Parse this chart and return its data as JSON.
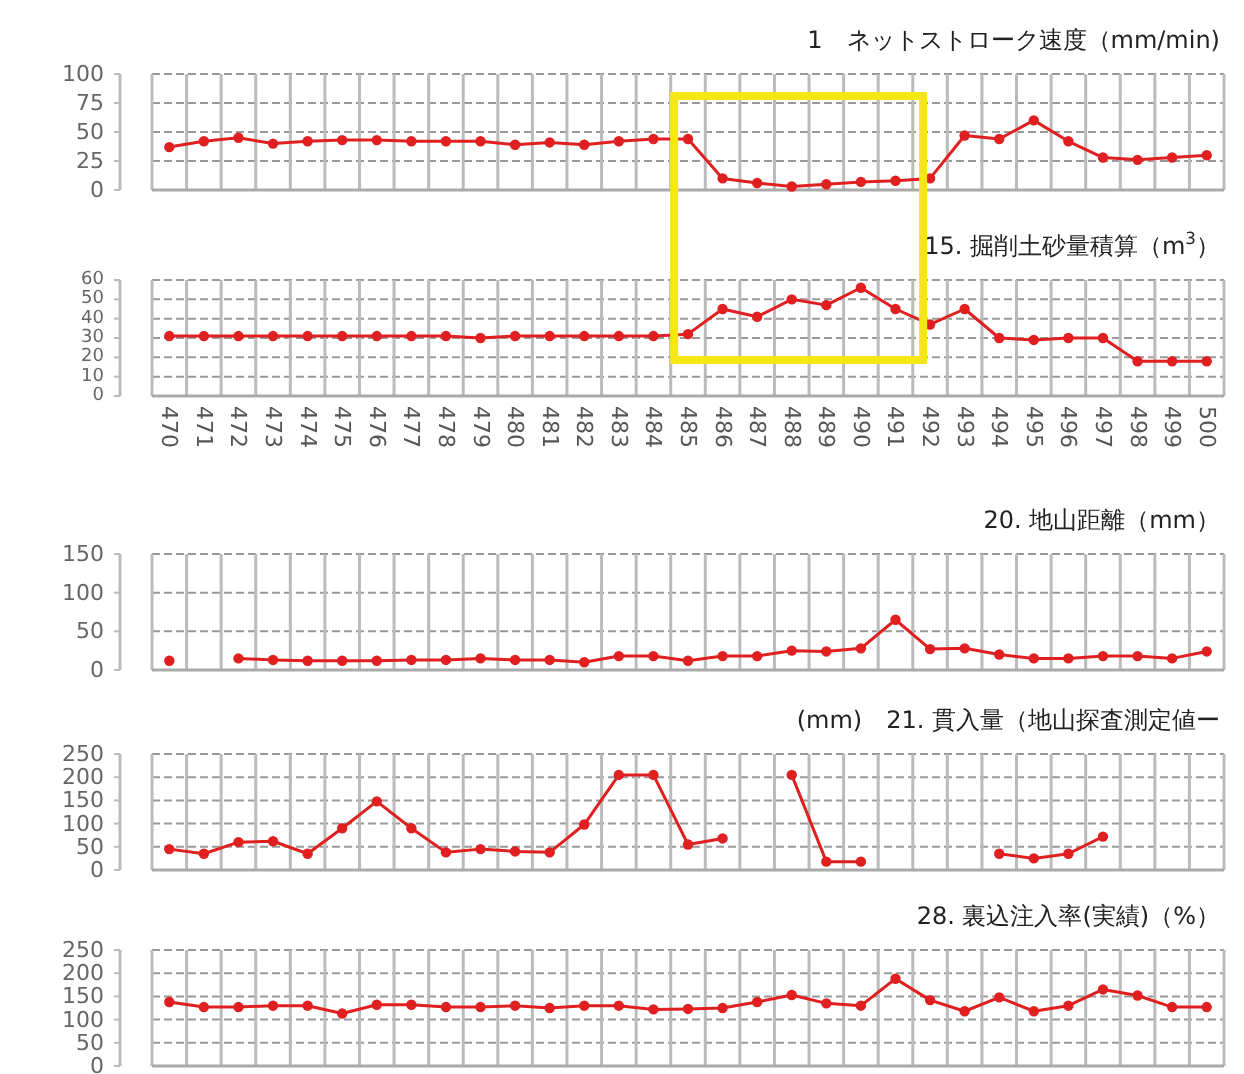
{
  "chart_data": [
    {
      "type": "line",
      "title": "1　ネットストローク速度（mm/min)",
      "categories": [
        "470",
        "471",
        "472",
        "473",
        "474",
        "475",
        "476",
        "477",
        "478",
        "479",
        "480",
        "481",
        "482",
        "483",
        "484",
        "485",
        "486",
        "487",
        "488",
        "489",
        "490",
        "491",
        "492",
        "493",
        "494",
        "495",
        "496",
        "497",
        "498",
        "499",
        "500"
      ],
      "ylim": [
        0,
        100
      ],
      "yticks": [
        0,
        25,
        50,
        75,
        100
      ],
      "grid": true,
      "tick_labels": "y",
      "marker": "circle",
      "line_style": "solid",
      "series": [
        {
          "color": "#e02020",
          "values": [
            37,
            42,
            45,
            40,
            42,
            43,
            43,
            42,
            42,
            42,
            39,
            41,
            39,
            42,
            44,
            44,
            10,
            6,
            3,
            5,
            7,
            8,
            10,
            47,
            44,
            60,
            42,
            28,
            26,
            28,
            30
          ]
        }
      ]
    },
    {
      "type": "line",
      "title": "15. 掘削土砂量積算（m$^{3}$）",
      "categories": [
        "470",
        "471",
        "472",
        "473",
        "474",
        "475",
        "476",
        "477",
        "478",
        "479",
        "480",
        "481",
        "482",
        "483",
        "484",
        "485",
        "486",
        "487",
        "488",
        "489",
        "490",
        "491",
        "492",
        "493",
        "494",
        "495",
        "496",
        "497",
        "498",
        "499",
        "500"
      ],
      "ylim": [
        0,
        60
      ],
      "yticks": [
        0,
        10,
        20,
        30,
        40,
        50,
        60
      ],
      "grid": true,
      "marker": "circle",
      "line_style": "solid",
      "series": [
        {
          "color": "#e02020",
          "values": [
            31,
            31,
            31,
            31,
            31,
            31,
            31,
            31,
            31,
            30,
            31,
            31,
            31,
            31,
            31,
            32,
            45,
            41,
            50,
            47,
            56,
            45,
            37,
            45,
            30,
            29,
            30,
            30,
            18,
            18,
            18
          ]
        }
      ]
    },
    {
      "type": "line",
      "title": "20. 地山距離（mm）",
      "categories": [
        "470",
        "471",
        "472",
        "473",
        "474",
        "475",
        "476",
        "477",
        "478",
        "479",
        "480",
        "481",
        "482",
        "483",
        "484",
        "485",
        "486",
        "487",
        "488",
        "489",
        "490",
        "491",
        "492",
        "493",
        "494",
        "495",
        "496",
        "497",
        "498",
        "499",
        "500"
      ],
      "ylim": [
        0,
        150
      ],
      "yticks": [
        0,
        50,
        100,
        150
      ],
      "grid": true,
      "tick_labels": "y",
      "marker": "circle",
      "line_style": "solid",
      "series": [
        {
          "color": "#e02020",
          "values": [
            12,
            null,
            15,
            13,
            12,
            12,
            12,
            13,
            13,
            15,
            13,
            13,
            10,
            18,
            18,
            12,
            18,
            18,
            25,
            24,
            28,
            65,
            27,
            28,
            20,
            15,
            15,
            18,
            18,
            15,
            24
          ]
        }
      ]
    },
    {
      "type": "line",
      "title": "(mm)　21. 貫入量（地山探査測定値ー",
      "categories": [
        "470",
        "471",
        "472",
        "473",
        "474",
        "475",
        "476",
        "477",
        "478",
        "479",
        "480",
        "481",
        "482",
        "483",
        "484",
        "485",
        "486",
        "487",
        "488",
        "489",
        "490",
        "491",
        "492",
        "493",
        "494",
        "495",
        "496",
        "497",
        "498",
        "499",
        "500"
      ],
      "ylim": [
        0,
        250
      ],
      "yticks": [
        0,
        50,
        100,
        150,
        200,
        250
      ],
      "grid": true,
      "tick_labels": "y",
      "marker": "circle",
      "line_style": "solid",
      "series": [
        {
          "color": "#e02020",
          "values": [
            45,
            35,
            60,
            62,
            35,
            90,
            148,
            90,
            38,
            45,
            40,
            38,
            98,
            205,
            205,
            55,
            68,
            null,
            205,
            18,
            18,
            null,
            null,
            null,
            35,
            25,
            35,
            72,
            null,
            null,
            null
          ]
        }
      ]
    },
    {
      "type": "line",
      "title": "28. 裏込注入率(実績)（%）",
      "categories": [
        "470",
        "471",
        "472",
        "473",
        "474",
        "475",
        "476",
        "477",
        "478",
        "479",
        "480",
        "481",
        "482",
        "483",
        "484",
        "485",
        "486",
        "487",
        "488",
        "489",
        "490",
        "491",
        "492",
        "493",
        "494",
        "495",
        "496",
        "497",
        "498",
        "499",
        "500"
      ],
      "ylim": [
        0,
        250
      ],
      "yticks": [
        0,
        50,
        100,
        150,
        200,
        250
      ],
      "grid": true,
      "tick_labels": "y",
      "marker": "circle",
      "line_style": "solid",
      "series": [
        {
          "color": "#e02020",
          "values": [
            138,
            127,
            127,
            130,
            130,
            113,
            132,
            132,
            127,
            127,
            130,
            125,
            130,
            130,
            122,
            123,
            125,
            138,
            153,
            135,
            130,
            188,
            142,
            118,
            148,
            118,
            130,
            165,
            152,
            127,
            127
          ]
        }
      ]
    }
  ]
}
